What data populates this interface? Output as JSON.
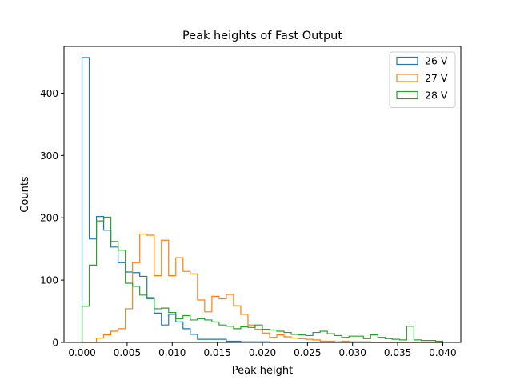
{
  "chart_data": {
    "type": "histogram-step",
    "title": "Peak heights of Fast Output",
    "xlabel": "Peak height",
    "ylabel": "Counts",
    "xlim": [
      -0.002,
      0.042
    ],
    "ylim": [
      0,
      475
    ],
    "xticks": [
      0.0,
      0.005,
      0.01,
      0.015,
      0.02,
      0.025,
      0.03,
      0.035,
      0.04
    ],
    "xtick_labels": [
      "0.000",
      "0.005",
      "0.010",
      "0.015",
      "0.020",
      "0.025",
      "0.030",
      "0.035",
      "0.040"
    ],
    "yticks": [
      0,
      100,
      200,
      300,
      400
    ],
    "ytick_labels": [
      "0",
      "100",
      "200",
      "300",
      "400"
    ],
    "legend_position": "top-right",
    "grid": false,
    "bin_edges": [
      0.0,
      0.0008,
      0.0016,
      0.0024,
      0.0032,
      0.004,
      0.0048,
      0.0056,
      0.0064,
      0.0072,
      0.008,
      0.0088,
      0.0096,
      0.0104,
      0.0112,
      0.012,
      0.0128,
      0.0136,
      0.0144,
      0.0152,
      0.016,
      0.0168,
      0.0176,
      0.0184,
      0.0192,
      0.02,
      0.0208,
      0.0216,
      0.0224,
      0.0232,
      0.024,
      0.0248,
      0.0256,
      0.0264,
      0.0272,
      0.028,
      0.0288,
      0.0296,
      0.0304,
      0.0312,
      0.032,
      0.0328,
      0.0336,
      0.0344,
      0.0352,
      0.036,
      0.0368,
      0.0376,
      0.0384,
      0.0392,
      0.04
    ],
    "series": [
      {
        "name": "26 V",
        "color": "#1f77b4",
        "values": [
          457,
          166,
          202,
          180,
          153,
          128,
          113,
          112,
          106,
          72,
          47,
          28,
          45,
          33,
          22,
          13,
          5,
          5,
          5,
          5,
          2,
          2,
          1,
          1,
          1,
          1,
          0,
          0,
          0,
          0,
          0,
          0,
          0,
          0,
          0,
          0,
          0,
          0,
          0,
          0,
          0,
          0,
          0,
          0,
          0,
          0,
          0,
          0,
          0,
          0
        ]
      },
      {
        "name": "27 V",
        "color": "#ff7f0e",
        "values": [
          0,
          0,
          7,
          12,
          18,
          22,
          54,
          128,
          174,
          172,
          107,
          164,
          107,
          136,
          114,
          110,
          68,
          49,
          74,
          70,
          77,
          59,
          45,
          28,
          21,
          15,
          8,
          12,
          9,
          7,
          6,
          5,
          4,
          2,
          2,
          1,
          2,
          1,
          1,
          1,
          0,
          0,
          0,
          0,
          0,
          0,
          0,
          0,
          0,
          0
        ]
      },
      {
        "name": "28 V",
        "color": "#2ca02c",
        "values": [
          58,
          124,
          195,
          201,
          162,
          148,
          95,
          90,
          76,
          70,
          54,
          55,
          48,
          38,
          43,
          36,
          38,
          36,
          33,
          28,
          26,
          22,
          25,
          24,
          28,
          21,
          20,
          18,
          16,
          13,
          12,
          11,
          16,
          18,
          14,
          11,
          8,
          10,
          10,
          6,
          12,
          8,
          6,
          5,
          4,
          26,
          4,
          3,
          3,
          2
        ]
      }
    ]
  }
}
